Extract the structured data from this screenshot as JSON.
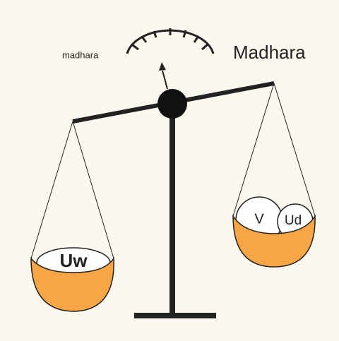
{
  "gauge": {
    "left_label": "madhara",
    "right_label": "Madhara"
  },
  "pans": {
    "left": {
      "items": [
        "Uw"
      ]
    },
    "right": {
      "items": [
        "V",
        "Ud"
      ]
    }
  }
}
